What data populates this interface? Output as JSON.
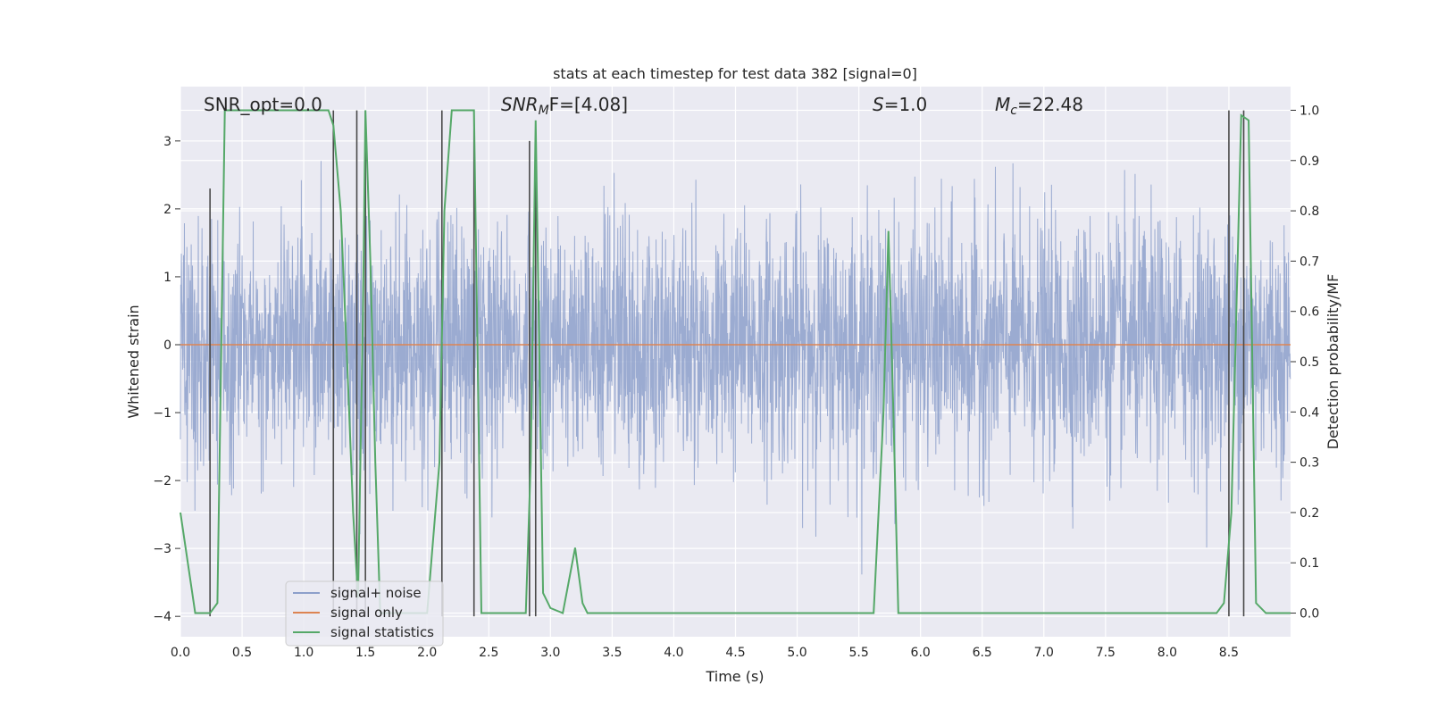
{
  "chart_data": {
    "type": "line",
    "title": "stats at each timestep for test data 382 [signal=0]",
    "xlabel": "Time (s)",
    "ylabel": "Whitened strain",
    "ylabel_right": "Detection probability/MF",
    "xlim": [
      0,
      9.0
    ],
    "ylim": [
      -4.3,
      3.8
    ],
    "ylim_right": [
      -0.047,
      1.047
    ],
    "xticks": [
      0.0,
      0.5,
      1.0,
      1.5,
      2.0,
      2.5,
      3.0,
      3.5,
      4.0,
      4.5,
      5.0,
      5.5,
      6.0,
      6.5,
      7.0,
      7.5,
      8.0,
      8.5
    ],
    "xtick_labels": [
      "0.0",
      "0.5",
      "1.0",
      "1.5",
      "2.0",
      "2.5",
      "3.0",
      "3.5",
      "4.0",
      "4.5",
      "5.0",
      "5.5",
      "6.0",
      "6.5",
      "7.0",
      "7.5",
      "8.0",
      "8.5"
    ],
    "yticks": [
      -4,
      -3,
      -2,
      -1,
      0,
      1,
      2,
      3
    ],
    "ytick_labels": [
      "−4",
      "−3",
      "−2",
      "−1",
      "0",
      "1",
      "2",
      "3"
    ],
    "yticks_right": [
      0.0,
      0.1,
      0.2,
      0.3,
      0.4,
      0.5,
      0.6,
      0.7,
      0.8,
      0.9,
      1.0
    ],
    "ytick_labels_right": [
      "0.0",
      "0.1",
      "0.2",
      "0.3",
      "0.4",
      "0.5",
      "0.6",
      "0.7",
      "0.8",
      "0.9",
      "1.0"
    ],
    "annotations": {
      "snr_opt": "SNR_opt=0.0",
      "snr_mf_sym": "SNR",
      "snr_mf_sub": "M",
      "snr_mf_rest": "F=[4.08]",
      "s_sym": "S",
      "s_rest": "=1.0",
      "mc_sym": "M",
      "mc_sub": "c",
      "mc_rest": "=22.48"
    },
    "legend": {
      "position": "lower left",
      "entries": [
        "signal+ noise",
        "signal only",
        "signal statistics"
      ]
    },
    "colors": {
      "noise": "#8da0cb",
      "signal": "#dd8452",
      "stats": "#55a868",
      "vline": "#4a4a4a",
      "background": "#eaeaf2",
      "grid": "#ffffff"
    },
    "series": [
      {
        "name": "signal statistics",
        "axis": "right",
        "x": [
          0.0,
          0.06,
          0.12,
          0.18,
          0.24,
          0.3,
          0.36,
          0.6,
          0.9,
          1.2,
          1.24,
          1.3,
          1.36,
          1.4,
          1.44,
          1.48,
          1.5,
          1.54,
          1.58,
          1.62,
          1.7,
          2.0,
          2.1,
          2.14,
          2.2,
          2.3,
          2.38,
          2.44,
          2.5,
          2.6,
          2.7,
          2.8,
          2.84,
          2.88,
          2.94,
          3.0,
          3.1,
          3.2,
          3.26,
          3.3,
          3.4,
          3.6,
          4.0,
          4.5,
          5.0,
          5.3,
          5.4,
          5.62,
          5.7,
          5.74,
          5.78,
          5.82,
          6.0,
          6.5,
          7.0,
          7.5,
          8.0,
          8.4,
          8.46,
          8.52,
          8.6,
          8.66,
          8.72,
          8.8,
          9.0
        ],
        "values": [
          0.2,
          0.1,
          0.0,
          0.0,
          0.0,
          0.02,
          1.0,
          1.0,
          1.0,
          1.0,
          0.97,
          0.8,
          0.45,
          0.2,
          0.03,
          0.6,
          1.0,
          0.7,
          0.3,
          0.0,
          0.0,
          0.0,
          0.3,
          0.8,
          1.0,
          1.0,
          1.0,
          0.0,
          0.0,
          0.0,
          0.0,
          0.0,
          0.3,
          0.98,
          0.04,
          0.01,
          0.0,
          0.13,
          0.02,
          0.0,
          0.0,
          0.0,
          0.0,
          0.0,
          0.0,
          0.0,
          0.0,
          0.0,
          0.4,
          0.76,
          0.4,
          0.0,
          0.0,
          0.0,
          0.0,
          0.0,
          0.0,
          0.0,
          0.02,
          0.2,
          0.99,
          0.98,
          0.02,
          0.0,
          0.0
        ]
      },
      {
        "name": "signal only",
        "axis": "left",
        "x": [
          0.0,
          9.0
        ],
        "values": [
          0.0,
          0.0
        ]
      },
      {
        "name": "signal+ noise",
        "axis": "left",
        "description_of_values": "gaussian noise, approx std 0.9",
        "noise_std": 0.9
      }
    ],
    "vertical_lines": [
      {
        "x": 0.24,
        "ymin": -4.0,
        "ymax": 2.3
      },
      {
        "x": 1.24,
        "ymin": -4.0,
        "ymax": 3.45
      },
      {
        "x": 1.43,
        "ymin": -4.0,
        "ymax": 3.45
      },
      {
        "x": 1.5,
        "ymin": -4.0,
        "ymax": 3.45
      },
      {
        "x": 2.12,
        "ymin": -4.0,
        "ymax": 3.45
      },
      {
        "x": 2.38,
        "ymin": -4.0,
        "ymax": 3.45
      },
      {
        "x": 2.83,
        "ymin": -4.0,
        "ymax": 3.0
      },
      {
        "x": 2.88,
        "ymin": -4.0,
        "ymax": 3.0
      },
      {
        "x": 8.5,
        "ymin": -4.0,
        "ymax": 3.45
      },
      {
        "x": 8.62,
        "ymin": -4.0,
        "ymax": 3.45
      }
    ]
  }
}
